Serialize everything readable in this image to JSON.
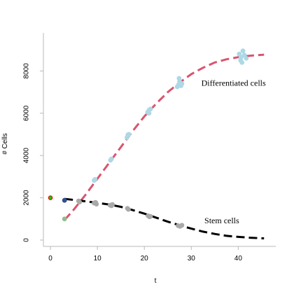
{
  "chart_data": {
    "type": "scatter",
    "title": "",
    "xlabel": "t",
    "ylabel": "# Cells",
    "xlim": [
      -1.5,
      48
    ],
    "ylim": [
      -300,
      9800
    ],
    "x_ticks": [
      0,
      10,
      20,
      30,
      40
    ],
    "y_ticks": [
      0,
      2000,
      4000,
      6000,
      8000
    ],
    "grid": false,
    "colors": {
      "differentiated_points": "#add8e6",
      "stem_points": "#a9a9a9",
      "differentiated_curve": "#d9546e",
      "stem_curve": "#000000",
      "initial_point_fill": "#00cc00",
      "initial_point_edge": "#ff0000",
      "first_stem_point": "#2f4f8f",
      "first_diff_point": "#8fbc8f"
    },
    "annotations": [
      {
        "text": "Differentiated cells",
        "x": 39,
        "y": 7300
      },
      {
        "text": "Stem cells",
        "x": 36.5,
        "y": 800
      }
    ],
    "initial_point": {
      "x": 0,
      "y": 2000
    },
    "series": [
      {
        "label": "Differentiated cells",
        "kind": "points",
        "points": [
          [
            3,
            1000
          ],
          [
            9.3,
            2820
          ],
          [
            9.5,
            2870
          ],
          [
            12.8,
            3780
          ],
          [
            13.0,
            3840
          ],
          [
            16.3,
            4850
          ],
          [
            16.5,
            4980
          ],
          [
            16.7,
            5000
          ],
          [
            20.7,
            6050
          ],
          [
            21.0,
            6150
          ],
          [
            21.3,
            6200
          ],
          [
            21.0,
            6000
          ],
          [
            27.0,
            7250
          ],
          [
            27.3,
            7350
          ],
          [
            27.5,
            7500
          ],
          [
            27.4,
            7650
          ],
          [
            27.8,
            7300
          ],
          [
            28.0,
            7400
          ],
          [
            40.2,
            8800
          ],
          [
            40.6,
            8650
          ],
          [
            41.0,
            8950
          ],
          [
            41.3,
            8750
          ],
          [
            41.7,
            8600
          ],
          [
            40.8,
            8400
          ],
          [
            40.5,
            8500
          ]
        ]
      },
      {
        "label": "Stem cells",
        "kind": "points",
        "points": [
          [
            3,
            1880
          ],
          [
            6.0,
            1850
          ],
          [
            6.2,
            1800
          ],
          [
            9.3,
            1750
          ],
          [
            9.6,
            1780
          ],
          [
            9.8,
            1700
          ],
          [
            12.7,
            1650
          ],
          [
            13.0,
            1620
          ],
          [
            13.2,
            1680
          ],
          [
            16.4,
            1500
          ],
          [
            16.6,
            1450
          ],
          [
            20.8,
            1150
          ],
          [
            21.1,
            1100
          ],
          [
            21.3,
            1120
          ],
          [
            27.2,
            680
          ],
          [
            27.6,
            650
          ],
          [
            28.0,
            700
          ]
        ]
      },
      {
        "label": "Differentiated cells",
        "kind": "curve",
        "points": [
          [
            3,
            950
          ],
          [
            5,
            1450
          ],
          [
            7.5,
            2150
          ],
          [
            10,
            2900
          ],
          [
            12.5,
            3650
          ],
          [
            15,
            4400
          ],
          [
            17.5,
            5150
          ],
          [
            20,
            5850
          ],
          [
            22.5,
            6450
          ],
          [
            25,
            7000
          ],
          [
            27.5,
            7450
          ],
          [
            30,
            7850
          ],
          [
            32.5,
            8150
          ],
          [
            35,
            8400
          ],
          [
            37.5,
            8550
          ],
          [
            40,
            8650
          ],
          [
            42.5,
            8720
          ],
          [
            45.5,
            8770
          ]
        ]
      },
      {
        "label": "Stem cells",
        "kind": "curve",
        "points": [
          [
            3,
            1950
          ],
          [
            5,
            1900
          ],
          [
            7.5,
            1830
          ],
          [
            10,
            1760
          ],
          [
            12.5,
            1680
          ],
          [
            15,
            1570
          ],
          [
            17.5,
            1420
          ],
          [
            20,
            1250
          ],
          [
            22.5,
            1060
          ],
          [
            25,
            870
          ],
          [
            27.5,
            700
          ],
          [
            30,
            540
          ],
          [
            32.5,
            400
          ],
          [
            35,
            290
          ],
          [
            37.5,
            200
          ],
          [
            40,
            150
          ],
          [
            42.5,
            110
          ],
          [
            45.5,
            80
          ]
        ]
      }
    ]
  }
}
